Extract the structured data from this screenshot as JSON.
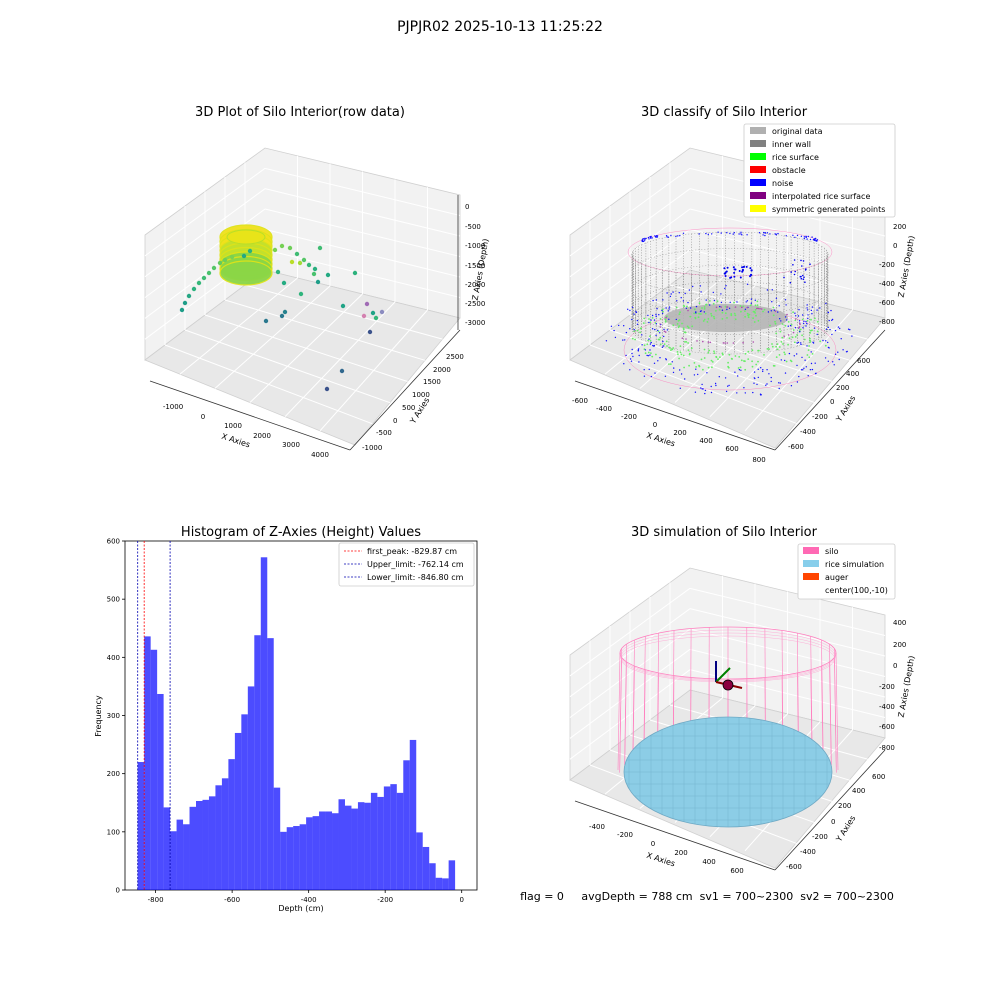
{
  "suptitle": "PJPJR02 2025-10-13 11:25:22",
  "chart_data": [
    {
      "type": "scatter3d",
      "title": "3D Plot of Silo Interior(row data)",
      "xlabel": "X Axies",
      "ylabel": "Y Axies",
      "zlabel": "Z Axies (Depth)",
      "xticks": [
        "-1000",
        "0",
        "1000",
        "2000",
        "3000",
        "4000"
      ],
      "yticks": [
        "-1000",
        "-500",
        "0",
        "500",
        "1000",
        "1500",
        "2000",
        "2500"
      ],
      "zticks": [
        "0",
        "-500",
        "-1000",
        "-1500",
        "-2000",
        "-2500",
        "-3000"
      ],
      "colormap": "viridis"
    },
    {
      "type": "scatter3d",
      "title": "3D classify of Silo Interior",
      "xlabel": "X Axies",
      "ylabel": "Y Axies",
      "zlabel": "Z Axies (Depth)",
      "xticks": [
        "-600",
        "-400",
        "-200",
        "0",
        "200",
        "400",
        "600",
        "800"
      ],
      "yticks": [
        "-600",
        "-400",
        "-200",
        "0",
        "200",
        "400",
        "600"
      ],
      "zticks": [
        "200",
        "0",
        "-200",
        "-400",
        "-600",
        "-800"
      ],
      "legend": [
        {
          "label": "original data",
          "color": "#b0b0b0"
        },
        {
          "label": "inner wall",
          "color": "#808080"
        },
        {
          "label": "rice surface",
          "color": "#00ff00"
        },
        {
          "label": "obstacle",
          "color": "#ff0000"
        },
        {
          "label": "noise",
          "color": "#0000ff"
        },
        {
          "label": "interpolated rice surface",
          "color": "#800080"
        },
        {
          "label": "symmetric generated points",
          "color": "#ffff00"
        }
      ],
      "legend_position": "top-right"
    },
    {
      "type": "bar",
      "title": "Histogram of Z-Axies (Height) Values",
      "xlabel": "Depth (cm)",
      "ylabel": "Frequency",
      "xlim": [
        -880,
        40
      ],
      "ylim": [
        0,
        600
      ],
      "xticks": [
        -800,
        -600,
        -400,
        -200,
        0
      ],
      "yticks": [
        0,
        100,
        200,
        300,
        400,
        500,
        600
      ],
      "bin_width": 16.93,
      "bin_start": -846.8,
      "values": [
        220,
        436,
        413,
        337,
        142,
        101,
        121,
        113,
        143,
        153,
        155,
        161,
        180,
        192,
        225,
        270,
        302,
        350,
        438,
        572,
        433,
        176,
        100,
        108,
        110,
        113,
        125,
        127,
        135,
        135,
        132,
        156,
        145,
        140,
        151,
        150,
        167,
        160,
        178,
        182,
        167,
        223,
        258,
        99,
        74,
        46,
        21,
        20,
        51
      ],
      "bar_color": "#0000ff",
      "lines": [
        {
          "label": "first_peak: -829.87 cm",
          "x": -829.87,
          "color": "#ff0000"
        },
        {
          "label": "Upper_limit: -762.14 cm",
          "x": -762.14,
          "color": "#0000b0"
        },
        {
          "label": "Lower_limit: -846.80 cm",
          "x": -846.8,
          "color": "#0000b0"
        }
      ],
      "legend_position": "top-right"
    },
    {
      "type": "surface3d",
      "title": "3D simulation of Silo Interior",
      "xlabel": "X Axies",
      "ylabel": "Y Axies",
      "zlabel": "Z Axies (Depth)",
      "xticks": [
        "-400",
        "-200",
        "0",
        "200",
        "400",
        "600"
      ],
      "yticks": [
        "-600",
        "-400",
        "-200",
        "0",
        "200",
        "400",
        "600"
      ],
      "zticks": [
        "400",
        "200",
        "0",
        "-200",
        "-400",
        "-600",
        "-800"
      ],
      "legend": [
        {
          "label": "silo",
          "color": "#ff69b4"
        },
        {
          "label": "rice simulation",
          "color": "#87ceeb"
        },
        {
          "label": "auger",
          "color": "#ff4500"
        },
        {
          "label": "center(100,-10)",
          "color": ""
        }
      ],
      "legend_position": "top-right"
    }
  ],
  "status_line": "flag = 0     avgDepth = 788 cm  sv1 = 700~2300  sv2 = 700~2300"
}
